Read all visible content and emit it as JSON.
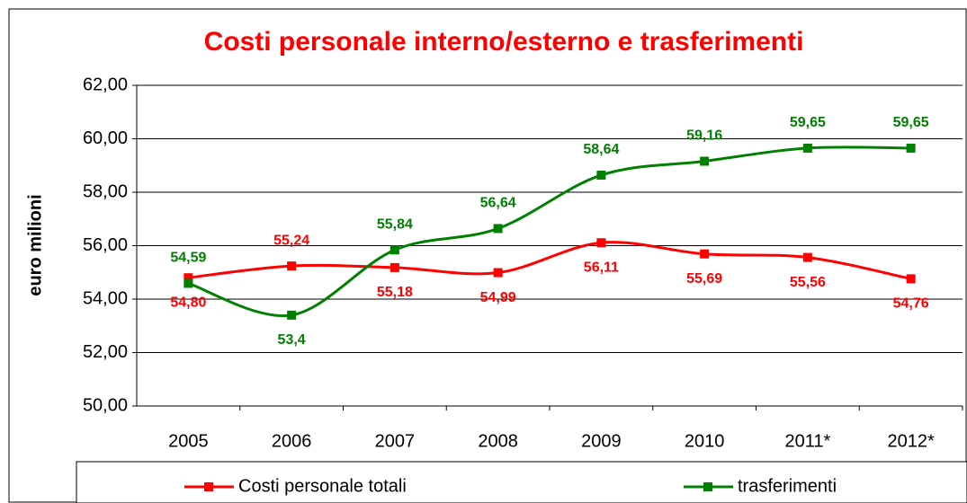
{
  "chart_data": {
    "type": "line",
    "title": "Costi personale interno/esterno e trasferimenti",
    "y_label": "euro milioni",
    "categories": [
      "2005",
      "2006",
      "2007",
      "2008",
      "2009",
      "2010",
      "2011*",
      "2012*"
    ],
    "series": [
      {
        "name": "Costi personale totali",
        "color": "#ff0000",
        "values": [
          54.8,
          55.24,
          55.18,
          54.99,
          56.11,
          55.69,
          55.56,
          54.76
        ],
        "value_labels": [
          "54,80",
          "55,24",
          "55,18",
          "54,99",
          "56,11",
          "55,69",
          "55,56",
          "54,76"
        ]
      },
      {
        "name": "trasferimenti",
        "color": "#008000",
        "values": [
          54.59,
          53.4,
          55.84,
          56.64,
          58.64,
          59.16,
          59.65,
          59.65
        ],
        "value_labels": [
          "54,59",
          "53,4",
          "55,84",
          "56,64",
          "58,64",
          "59,16",
          "59,65",
          "59,65"
        ]
      }
    ],
    "ylim": [
      50,
      62
    ],
    "yticks": [
      {
        "value": 50,
        "label": "50,00"
      },
      {
        "value": 52,
        "label": "52,00"
      },
      {
        "value": 54,
        "label": "54,00"
      },
      {
        "value": 56,
        "label": "56,00"
      },
      {
        "value": 58,
        "label": "58,00"
      },
      {
        "value": 60,
        "label": "60,00"
      },
      {
        "value": 62,
        "label": "62,00"
      }
    ],
    "grid": true,
    "legend": "bottom"
  }
}
